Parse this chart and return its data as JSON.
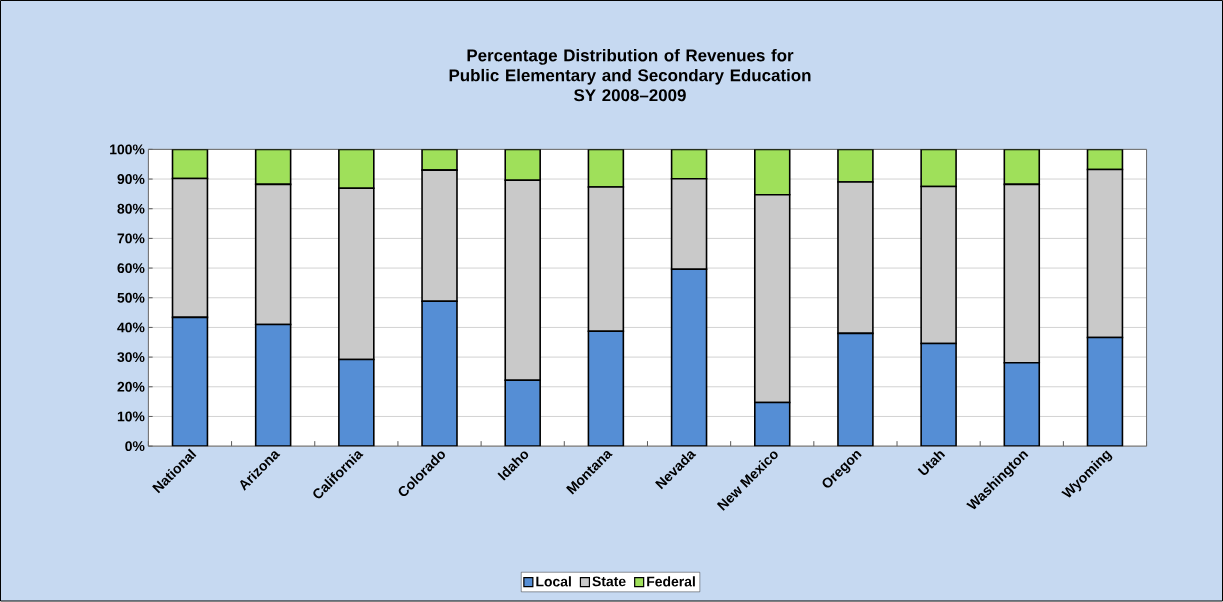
{
  "chart_data": {
    "type": "bar",
    "stacked": true,
    "title": "Percentage Distribution of Revenues for Public Elementary and Secondary Education",
    "subtitle": "SY 2008–2009",
    "categories": [
      "National",
      "Arizona",
      "California",
      "Colorado",
      "Idaho",
      "Montana",
      "Nevada",
      "New Mexico",
      "Oregon",
      "Utah",
      "Washington",
      "Wyoming"
    ],
    "series": [
      {
        "name": "Local",
        "color": "#558ed5",
        "values": [
          43.4,
          41.0,
          29.2,
          48.8,
          22.2,
          38.7,
          59.6,
          14.7,
          38.0,
          34.6,
          28.1,
          36.6
        ]
      },
      {
        "name": "State",
        "color": "#c9c9c9",
        "values": [
          46.8,
          47.2,
          57.7,
          44.2,
          67.4,
          48.6,
          30.5,
          70.0,
          51.0,
          52.9,
          60.1,
          56.6
        ]
      },
      {
        "name": "Federal",
        "color": "#9fe05a",
        "values": [
          9.8,
          11.8,
          13.1,
          7.0,
          10.4,
          12.7,
          9.9,
          15.3,
          11.0,
          12.5,
          11.8,
          6.8
        ]
      }
    ],
    "ylim": [
      0,
      100
    ],
    "yticks": [
      {
        "value": 0,
        "label": "0%"
      },
      {
        "value": 10,
        "label": "10%"
      },
      {
        "value": 20,
        "label": "20%"
      },
      {
        "value": 30,
        "label": "30%"
      },
      {
        "value": 40,
        "label": "40%"
      },
      {
        "value": 50,
        "label": "50%"
      },
      {
        "value": 60,
        "label": "60%"
      },
      {
        "value": 70,
        "label": "70%"
      },
      {
        "value": 80,
        "label": "80%"
      },
      {
        "value": 90,
        "label": "90%"
      },
      {
        "value": 100,
        "label": "100%"
      }
    ],
    "grid": "y",
    "legend": "bottom"
  }
}
